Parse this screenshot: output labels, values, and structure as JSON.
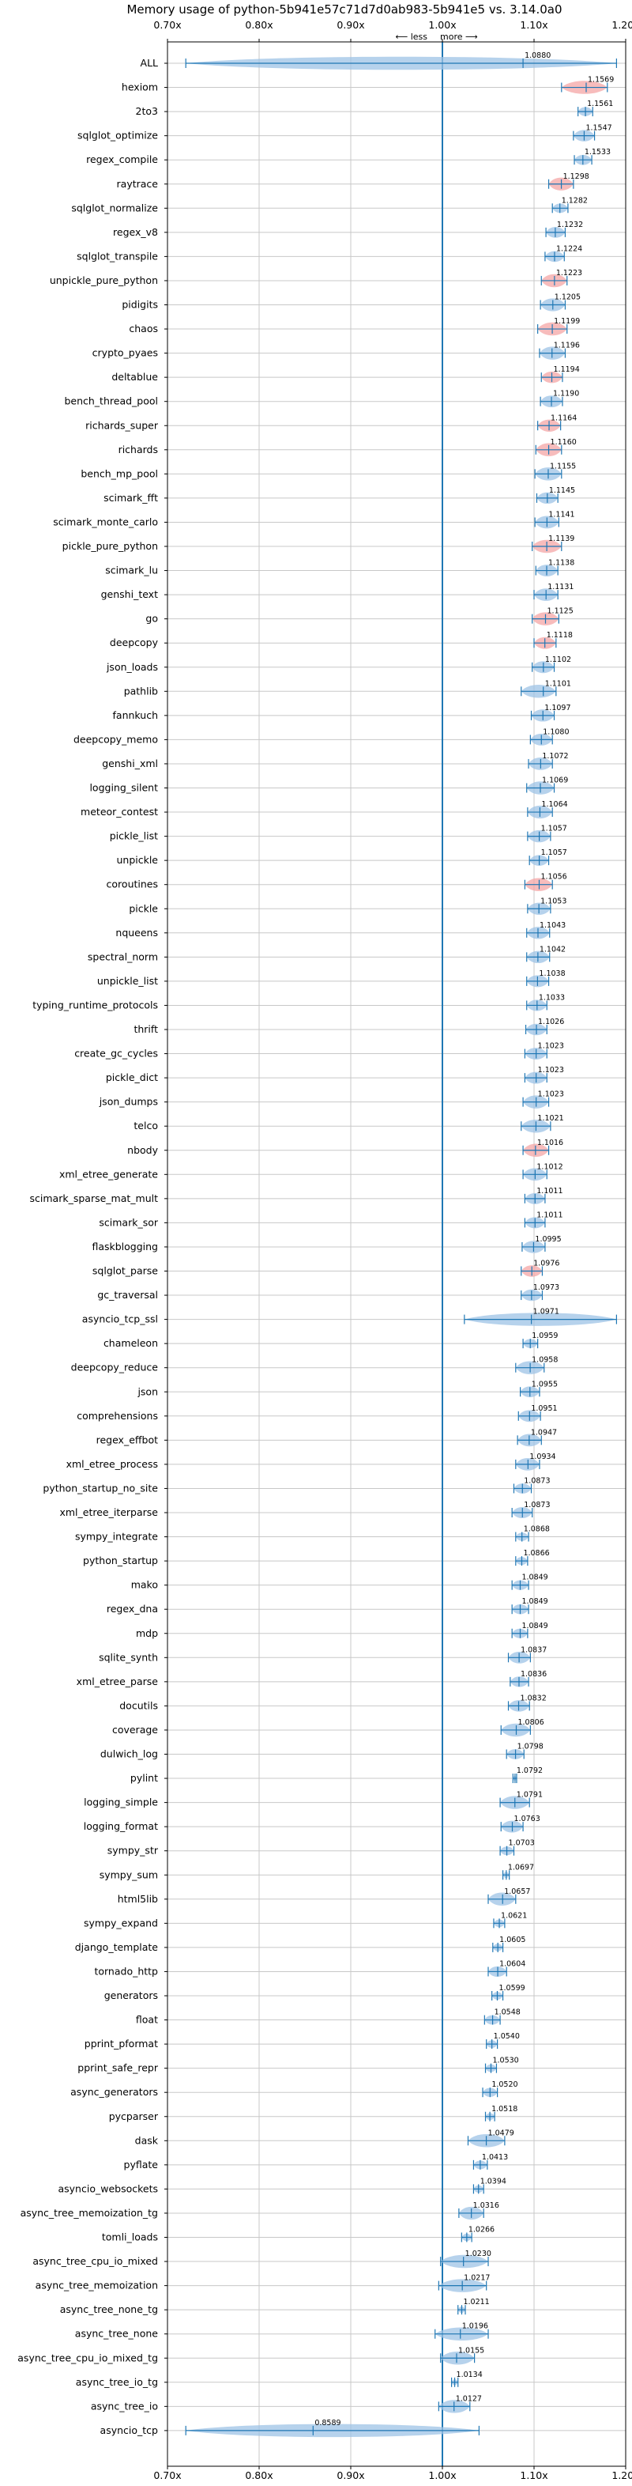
{
  "chart_data": {
    "type": "violin",
    "title": "Memory usage of python-5b941e57c71d7d0ab983-5b941e5 vs. 3.14.0a0",
    "direction_labels": {
      "less": "⟵ less",
      "more": "more ⟶"
    },
    "xlim": [
      0.7,
      1.2
    ],
    "xticks": [
      0.7,
      0.8,
      0.9,
      1.0,
      1.1,
      1.2
    ],
    "xtick_labels": [
      "0.70x",
      "0.80x",
      "0.90x",
      "1.00x",
      "1.10x",
      "1.20x"
    ],
    "reference_line": 1.0,
    "grid": true,
    "colors": {
      "improved": "#9dc3e6",
      "regressed": "#f4a6a6",
      "line": "#1f77b4"
    },
    "benchmarks": [
      {
        "name": "ALL",
        "value": 1.088,
        "label": "1.0880",
        "min": 0.72,
        "max": 1.19,
        "highlight": false
      },
      {
        "name": "hexiom",
        "value": 1.1569,
        "label": "1.1569",
        "min": 1.13,
        "max": 1.18,
        "highlight": true
      },
      {
        "name": "2to3",
        "value": 1.1561,
        "label": "1.1561",
        "min": 1.148,
        "max": 1.164,
        "highlight": false
      },
      {
        "name": "sqlglot_optimize",
        "value": 1.1547,
        "label": "1.1547",
        "min": 1.143,
        "max": 1.166,
        "highlight": false
      },
      {
        "name": "regex_compile",
        "value": 1.1533,
        "label": "1.1533",
        "min": 1.144,
        "max": 1.163,
        "highlight": false
      },
      {
        "name": "raytrace",
        "value": 1.1298,
        "label": "1.1298",
        "min": 1.116,
        "max": 1.143,
        "highlight": true
      },
      {
        "name": "sqlglot_normalize",
        "value": 1.1282,
        "label": "1.1282",
        "min": 1.12,
        "max": 1.137,
        "highlight": false
      },
      {
        "name": "regex_v8",
        "value": 1.1232,
        "label": "1.1232",
        "min": 1.113,
        "max": 1.134,
        "highlight": false
      },
      {
        "name": "sqlglot_transpile",
        "value": 1.1224,
        "label": "1.1224",
        "min": 1.112,
        "max": 1.133,
        "highlight": false
      },
      {
        "name": "unpickle_pure_python",
        "value": 1.1223,
        "label": "1.1223",
        "min": 1.108,
        "max": 1.136,
        "highlight": true
      },
      {
        "name": "pidigits",
        "value": 1.1205,
        "label": "1.1205",
        "min": 1.107,
        "max": 1.134,
        "highlight": false
      },
      {
        "name": "chaos",
        "value": 1.1199,
        "label": "1.1199",
        "min": 1.104,
        "max": 1.136,
        "highlight": true
      },
      {
        "name": "crypto_pyaes",
        "value": 1.1196,
        "label": "1.1196",
        "min": 1.106,
        "max": 1.134,
        "highlight": false
      },
      {
        "name": "deltablue",
        "value": 1.1194,
        "label": "1.1194",
        "min": 1.108,
        "max": 1.131,
        "highlight": true
      },
      {
        "name": "bench_thread_pool",
        "value": 1.119,
        "label": "1.1190",
        "min": 1.107,
        "max": 1.131,
        "highlight": false
      },
      {
        "name": "richards_super",
        "value": 1.1164,
        "label": "1.1164",
        "min": 1.104,
        "max": 1.129,
        "highlight": true
      },
      {
        "name": "richards",
        "value": 1.116,
        "label": "1.1160",
        "min": 1.102,
        "max": 1.13,
        "highlight": true
      },
      {
        "name": "bench_mp_pool",
        "value": 1.1155,
        "label": "1.1155",
        "min": 1.101,
        "max": 1.13,
        "highlight": false
      },
      {
        "name": "scimark_fft",
        "value": 1.1145,
        "label": "1.1145",
        "min": 1.103,
        "max": 1.126,
        "highlight": false
      },
      {
        "name": "scimark_monte_carlo",
        "value": 1.1141,
        "label": "1.1141",
        "min": 1.101,
        "max": 1.127,
        "highlight": false
      },
      {
        "name": "pickle_pure_python",
        "value": 1.1139,
        "label": "1.1139",
        "min": 1.098,
        "max": 1.13,
        "highlight": true
      },
      {
        "name": "scimark_lu",
        "value": 1.1138,
        "label": "1.1138",
        "min": 1.102,
        "max": 1.126,
        "highlight": false
      },
      {
        "name": "genshi_text",
        "value": 1.1131,
        "label": "1.1131",
        "min": 1.1,
        "max": 1.126,
        "highlight": false
      },
      {
        "name": "go",
        "value": 1.1125,
        "label": "1.1125",
        "min": 1.098,
        "max": 1.127,
        "highlight": true
      },
      {
        "name": "deepcopy",
        "value": 1.1118,
        "label": "1.1118",
        "min": 1.1,
        "max": 1.124,
        "highlight": true
      },
      {
        "name": "json_loads",
        "value": 1.1102,
        "label": "1.1102",
        "min": 1.098,
        "max": 1.122,
        "highlight": false
      },
      {
        "name": "pathlib",
        "value": 1.1101,
        "label": "1.1101",
        "min": 1.086,
        "max": 1.124,
        "highlight": false
      },
      {
        "name": "fannkuch",
        "value": 1.1097,
        "label": "1.1097",
        "min": 1.097,
        "max": 1.122,
        "highlight": false
      },
      {
        "name": "deepcopy_memo",
        "value": 1.108,
        "label": "1.1080",
        "min": 1.096,
        "max": 1.12,
        "highlight": false
      },
      {
        "name": "genshi_xml",
        "value": 1.1072,
        "label": "1.1072",
        "min": 1.094,
        "max": 1.12,
        "highlight": false
      },
      {
        "name": "logging_silent",
        "value": 1.1069,
        "label": "1.1069",
        "min": 1.092,
        "max": 1.122,
        "highlight": false
      },
      {
        "name": "meteor_contest",
        "value": 1.1064,
        "label": "1.1064",
        "min": 1.093,
        "max": 1.12,
        "highlight": false
      },
      {
        "name": "pickle_list",
        "value": 1.1057,
        "label": "1.1057",
        "min": 1.093,
        "max": 1.118,
        "highlight": false
      },
      {
        "name": "unpickle",
        "value": 1.1057,
        "label": "1.1057",
        "min": 1.095,
        "max": 1.116,
        "highlight": false
      },
      {
        "name": "coroutines",
        "value": 1.1056,
        "label": "1.1056",
        "min": 1.09,
        "max": 1.12,
        "highlight": true
      },
      {
        "name": "pickle",
        "value": 1.1053,
        "label": "1.1053",
        "min": 1.093,
        "max": 1.118,
        "highlight": false
      },
      {
        "name": "nqueens",
        "value": 1.1043,
        "label": "1.1043",
        "min": 1.092,
        "max": 1.117,
        "highlight": false
      },
      {
        "name": "spectral_norm",
        "value": 1.1042,
        "label": "1.1042",
        "min": 1.092,
        "max": 1.117,
        "highlight": false
      },
      {
        "name": "unpickle_list",
        "value": 1.1038,
        "label": "1.1038",
        "min": 1.092,
        "max": 1.116,
        "highlight": false
      },
      {
        "name": "typing_runtime_protocols",
        "value": 1.1033,
        "label": "1.1033",
        "min": 1.092,
        "max": 1.114,
        "highlight": false
      },
      {
        "name": "thrift",
        "value": 1.1026,
        "label": "1.1026",
        "min": 1.091,
        "max": 1.114,
        "highlight": false
      },
      {
        "name": "create_gc_cycles",
        "value": 1.1023,
        "label": "1.1023",
        "min": 1.09,
        "max": 1.114,
        "highlight": false
      },
      {
        "name": "pickle_dict",
        "value": 1.1023,
        "label": "1.1023",
        "min": 1.09,
        "max": 1.114,
        "highlight": false
      },
      {
        "name": "json_dumps",
        "value": 1.1023,
        "label": "1.1023",
        "min": 1.088,
        "max": 1.116,
        "highlight": false
      },
      {
        "name": "telco",
        "value": 1.1021,
        "label": "1.1021",
        "min": 1.086,
        "max": 1.118,
        "highlight": false
      },
      {
        "name": "nbody",
        "value": 1.1016,
        "label": "1.1016",
        "min": 1.088,
        "max": 1.116,
        "highlight": true
      },
      {
        "name": "xml_etree_generate",
        "value": 1.1012,
        "label": "1.1012",
        "min": 1.088,
        "max": 1.114,
        "highlight": false
      },
      {
        "name": "scimark_sparse_mat_mult",
        "value": 1.1011,
        "label": "1.1011",
        "min": 1.09,
        "max": 1.112,
        "highlight": false
      },
      {
        "name": "scimark_sor",
        "value": 1.1011,
        "label": "1.1011",
        "min": 1.09,
        "max": 1.112,
        "highlight": false
      },
      {
        "name": "flaskblogging",
        "value": 1.0995,
        "label": "1.0995",
        "min": 1.087,
        "max": 1.112,
        "highlight": false
      },
      {
        "name": "sqlglot_parse",
        "value": 1.0976,
        "label": "1.0976",
        "min": 1.086,
        "max": 1.109,
        "highlight": true
      },
      {
        "name": "gc_traversal",
        "value": 1.0973,
        "label": "1.0973",
        "min": 1.086,
        "max": 1.109,
        "highlight": false
      },
      {
        "name": "asyncio_tcp_ssl",
        "value": 1.0971,
        "label": "1.0971",
        "min": 1.024,
        "max": 1.19,
        "highlight": false
      },
      {
        "name": "chameleon",
        "value": 1.0959,
        "label": "1.0959",
        "min": 1.088,
        "max": 1.104,
        "highlight": false
      },
      {
        "name": "deepcopy_reduce",
        "value": 1.0958,
        "label": "1.0958",
        "min": 1.08,
        "max": 1.111,
        "highlight": false
      },
      {
        "name": "json",
        "value": 1.0955,
        "label": "1.0955",
        "min": 1.085,
        "max": 1.106,
        "highlight": false
      },
      {
        "name": "comprehensions",
        "value": 1.0951,
        "label": "1.0951",
        "min": 1.083,
        "max": 1.107,
        "highlight": false
      },
      {
        "name": "regex_effbot",
        "value": 1.0947,
        "label": "1.0947",
        "min": 1.082,
        "max": 1.108,
        "highlight": false
      },
      {
        "name": "xml_etree_process",
        "value": 1.0934,
        "label": "1.0934",
        "min": 1.08,
        "max": 1.106,
        "highlight": false
      },
      {
        "name": "python_startup_no_site",
        "value": 1.0873,
        "label": "1.0873",
        "min": 1.078,
        "max": 1.097,
        "highlight": false
      },
      {
        "name": "xml_etree_iterparse",
        "value": 1.0873,
        "label": "1.0873",
        "min": 1.076,
        "max": 1.098,
        "highlight": false
      },
      {
        "name": "sympy_integrate",
        "value": 1.0868,
        "label": "1.0868",
        "min": 1.08,
        "max": 1.094,
        "highlight": false
      },
      {
        "name": "python_startup",
        "value": 1.0866,
        "label": "1.0866",
        "min": 1.08,
        "max": 1.093,
        "highlight": false
      },
      {
        "name": "mako",
        "value": 1.0849,
        "label": "1.0849",
        "min": 1.076,
        "max": 1.094,
        "highlight": false
      },
      {
        "name": "regex_dna",
        "value": 1.0849,
        "label": "1.0849",
        "min": 1.076,
        "max": 1.094,
        "highlight": false
      },
      {
        "name": "mdp",
        "value": 1.0849,
        "label": "1.0849",
        "min": 1.076,
        "max": 1.093,
        "highlight": false
      },
      {
        "name": "sqlite_synth",
        "value": 1.0837,
        "label": "1.0837",
        "min": 1.072,
        "max": 1.096,
        "highlight": false
      },
      {
        "name": "xml_etree_parse",
        "value": 1.0836,
        "label": "1.0836",
        "min": 1.074,
        "max": 1.094,
        "highlight": false
      },
      {
        "name": "docutils",
        "value": 1.0832,
        "label": "1.0832",
        "min": 1.072,
        "max": 1.095,
        "highlight": false
      },
      {
        "name": "coverage",
        "value": 1.0806,
        "label": "1.0806",
        "min": 1.064,
        "max": 1.096,
        "highlight": false
      },
      {
        "name": "dulwich_log",
        "value": 1.0798,
        "label": "1.0798",
        "min": 1.07,
        "max": 1.089,
        "highlight": false
      },
      {
        "name": "pylint",
        "value": 1.0792,
        "label": "1.0792",
        "min": 1.077,
        "max": 1.081,
        "highlight": false
      },
      {
        "name": "logging_simple",
        "value": 1.0791,
        "label": "1.0791",
        "min": 1.063,
        "max": 1.095,
        "highlight": false
      },
      {
        "name": "logging_format",
        "value": 1.0763,
        "label": "1.0763",
        "min": 1.064,
        "max": 1.088,
        "highlight": false
      },
      {
        "name": "sympy_str",
        "value": 1.0703,
        "label": "1.0703",
        "min": 1.063,
        "max": 1.078,
        "highlight": false
      },
      {
        "name": "sympy_sum",
        "value": 1.0697,
        "label": "1.0697",
        "min": 1.066,
        "max": 1.073,
        "highlight": false
      },
      {
        "name": "html5lib",
        "value": 1.0657,
        "label": "1.0657",
        "min": 1.05,
        "max": 1.08,
        "highlight": false
      },
      {
        "name": "sympy_expand",
        "value": 1.0621,
        "label": "1.0621",
        "min": 1.056,
        "max": 1.068,
        "highlight": false
      },
      {
        "name": "django_template",
        "value": 1.0605,
        "label": "1.0605",
        "min": 1.055,
        "max": 1.066,
        "highlight": false
      },
      {
        "name": "tornado_http",
        "value": 1.0604,
        "label": "1.0604",
        "min": 1.05,
        "max": 1.07,
        "highlight": false
      },
      {
        "name": "generators",
        "value": 1.0599,
        "label": "1.0599",
        "min": 1.054,
        "max": 1.066,
        "highlight": false
      },
      {
        "name": "float",
        "value": 1.0548,
        "label": "1.0548",
        "min": 1.046,
        "max": 1.063,
        "highlight": false
      },
      {
        "name": "pprint_pformat",
        "value": 1.054,
        "label": "1.0540",
        "min": 1.048,
        "max": 1.06,
        "highlight": false
      },
      {
        "name": "pprint_safe_repr",
        "value": 1.053,
        "label": "1.0530",
        "min": 1.047,
        "max": 1.059,
        "highlight": false
      },
      {
        "name": "async_generators",
        "value": 1.052,
        "label": "1.0520",
        "min": 1.044,
        "max": 1.06,
        "highlight": false
      },
      {
        "name": "pycparser",
        "value": 1.0518,
        "label": "1.0518",
        "min": 1.047,
        "max": 1.057,
        "highlight": false
      },
      {
        "name": "dask",
        "value": 1.0479,
        "label": "1.0479",
        "min": 1.028,
        "max": 1.068,
        "highlight": false
      },
      {
        "name": "pyflate",
        "value": 1.0413,
        "label": "1.0413",
        "min": 1.034,
        "max": 1.049,
        "highlight": false
      },
      {
        "name": "asyncio_websockets",
        "value": 1.0394,
        "label": "1.0394",
        "min": 1.034,
        "max": 1.045,
        "highlight": false
      },
      {
        "name": "async_tree_memoization_tg",
        "value": 1.0316,
        "label": "1.0316",
        "min": 1.018,
        "max": 1.045,
        "highlight": false
      },
      {
        "name": "tomli_loads",
        "value": 1.0266,
        "label": "1.0266",
        "min": 1.021,
        "max": 1.032,
        "highlight": false
      },
      {
        "name": "async_tree_cpu_io_mixed",
        "value": 1.023,
        "label": "1.0230",
        "min": 0.998,
        "max": 1.05,
        "highlight": false
      },
      {
        "name": "async_tree_memoization",
        "value": 1.0217,
        "label": "1.0217",
        "min": 0.996,
        "max": 1.048,
        "highlight": false
      },
      {
        "name": "async_tree_none_tg",
        "value": 1.0211,
        "label": "1.0211",
        "min": 1.017,
        "max": 1.025,
        "highlight": false
      },
      {
        "name": "async_tree_none",
        "value": 1.0196,
        "label": "1.0196",
        "min": 0.992,
        "max": 1.05,
        "highlight": false
      },
      {
        "name": "async_tree_cpu_io_mixed_tg",
        "value": 1.0155,
        "label": "1.0155",
        "min": 0.998,
        "max": 1.035,
        "highlight": false
      },
      {
        "name": "async_tree_io_tg",
        "value": 1.0134,
        "label": "1.0134",
        "min": 1.01,
        "max": 1.017,
        "highlight": false
      },
      {
        "name": "async_tree_io",
        "value": 1.0127,
        "label": "1.0127",
        "min": 0.996,
        "max": 1.03,
        "highlight": false
      },
      {
        "name": "asyncio_tcp",
        "value": 0.8589,
        "label": "0.8589",
        "min": 0.72,
        "max": 1.04,
        "highlight": false
      }
    ]
  }
}
